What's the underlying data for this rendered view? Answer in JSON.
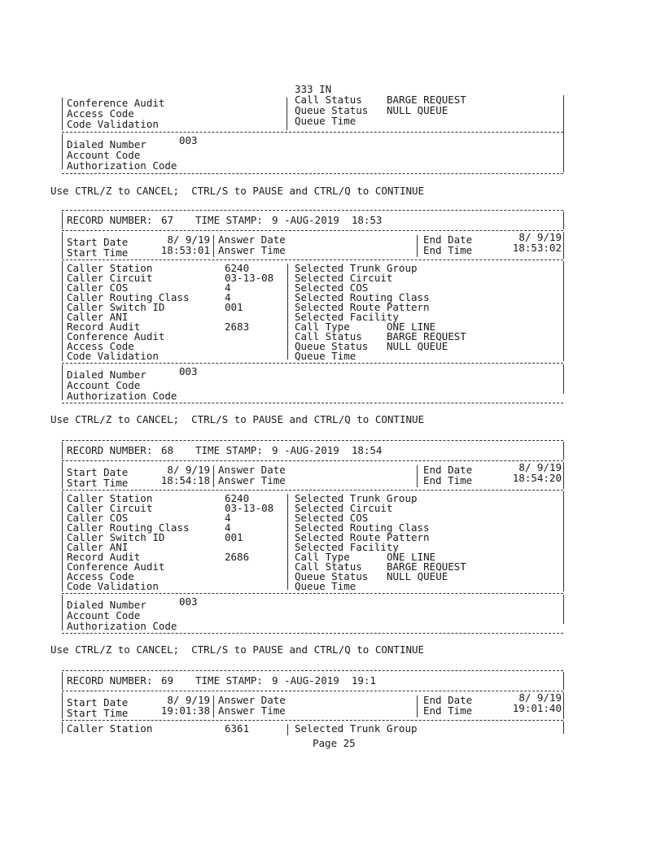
{
  "labels": {
    "record_number": "RECORD NUMBER:",
    "time_stamp": "TIME STAMP:",
    "start_date": "Start Date",
    "start_time": "Start Time",
    "answer_date": "Answer Date",
    "answer_time": "Answer Time",
    "end_date": "End Date",
    "end_time": "End Time",
    "caller": [
      "Caller Station",
      "Caller Circuit",
      "Caller COS",
      "Caller Routing Class",
      "Caller Switch ID",
      "Caller ANI",
      "Record Audit",
      "Conference Audit",
      "Access Code",
      "Code Validation"
    ],
    "selected": [
      "Selected Trunk Group",
      "Selected Circuit",
      "Selected COS",
      "Selected Routing Class",
      "Selected Route Pattern",
      "Selected Facility",
      "Call Type",
      "Call Status",
      "Queue Status",
      "Queue Time"
    ],
    "dialed": [
      "Dialed Number",
      "Account Code",
      "Authorization Code"
    ],
    "ctrl_hint": "Use CTRL/Z to CANCEL;  CTRL/S to PAUSE and CTRL/Q to CONTINUE"
  },
  "fragment": {
    "top_value": "333 IN",
    "left": [
      "Conference Audit",
      "Access Code",
      "Code Validation"
    ],
    "right": [
      "Call Status",
      "Queue Status",
      "Queue Time"
    ],
    "right_values": [
      "BARGE REQUEST",
      "NULL QUEUE",
      ""
    ],
    "dialed_values": [
      "003",
      "",
      ""
    ]
  },
  "records": [
    {
      "record_number": "67",
      "time_stamp": "9 -AUG-2019  18:53",
      "start_date": "8/ 9/19",
      "start_time": "18:53:01",
      "end_date": "8/ 9/19",
      "end_time": "18:53:02",
      "caller_values": [
        "6240",
        "03-13-08",
        "4",
        "4",
        "001",
        "",
        "2683",
        "",
        "",
        ""
      ],
      "selected_values": [
        "",
        "",
        "",
        "",
        "",
        "",
        "ONE LINE",
        "BARGE REQUEST",
        "NULL QUEUE",
        ""
      ],
      "dialed_values": [
        "003",
        "",
        ""
      ]
    },
    {
      "record_number": "68",
      "time_stamp": "9 -AUG-2019  18:54",
      "start_date": "8/ 9/19",
      "start_time": "18:54:18",
      "end_date": "8/ 9/19",
      "end_time": "18:54:20",
      "caller_values": [
        "6240",
        "03-13-08",
        "4",
        "4",
        "001",
        "",
        "2686",
        "",
        "",
        ""
      ],
      "selected_values": [
        "",
        "",
        "",
        "",
        "",
        "",
        "ONE LINE",
        "BARGE REQUEST",
        "NULL QUEUE",
        ""
      ],
      "dialed_values": [
        "003",
        "",
        ""
      ]
    },
    {
      "record_number": "69",
      "time_stamp": "9 -AUG-2019  19:1",
      "start_date": "8/ 9/19",
      "start_time": "19:01:38",
      "end_date": "8/ 9/19",
      "end_time": "19:01:40",
      "caller_values": [
        "6361"
      ],
      "selected_values": [
        ""
      ],
      "dialed_values": []
    }
  ],
  "footer": {
    "page": "Page 25"
  }
}
